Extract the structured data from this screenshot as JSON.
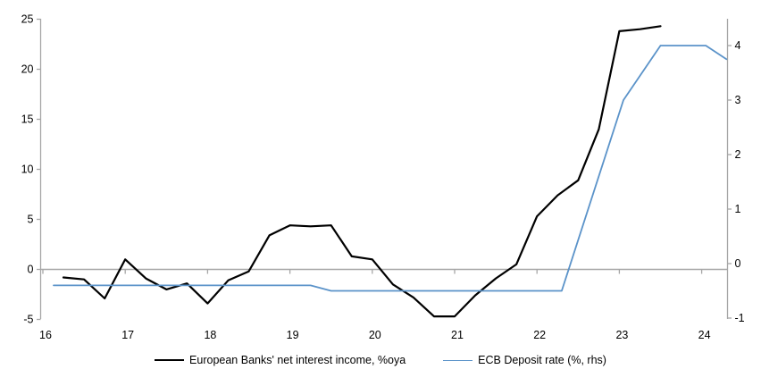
{
  "chart_data": {
    "type": "line",
    "title": "",
    "grid": false,
    "zero_line": true,
    "legend_position": "bottom",
    "x_axis": {
      "tick_labels": [
        "16",
        "17",
        "18",
        "19",
        "20",
        "21",
        "22",
        "23",
        "24"
      ],
      "tick_values": [
        16,
        17,
        18,
        19,
        20,
        21,
        22,
        23,
        24
      ],
      "range": [
        15.97,
        24.35
      ]
    },
    "left_axis": {
      "tick_labels": [
        "-5",
        "0",
        "5",
        "10",
        "15",
        "20",
        "25"
      ],
      "tick_values": [
        -5,
        0,
        5,
        10,
        15,
        20,
        25
      ],
      "range": [
        -5,
        25
      ]
    },
    "right_axis": {
      "tick_labels": [
        "-1",
        "0",
        "1",
        "2",
        "3",
        "4"
      ],
      "tick_values": [
        -1,
        0,
        1,
        2,
        3,
        4
      ],
      "range": [
        -1,
        4.5
      ]
    },
    "series": [
      {
        "name": "European Banks' net interest income, %oya",
        "axis": "left",
        "color": "#000000",
        "stroke_width": 2.2,
        "x": [
          16.25,
          16.5,
          16.75,
          17.0,
          17.25,
          17.5,
          17.75,
          18.0,
          18.25,
          18.5,
          18.75,
          19.0,
          19.25,
          19.5,
          19.75,
          20.0,
          20.25,
          20.5,
          20.75,
          21.0,
          21.25,
          21.5,
          21.75,
          22.0,
          22.25,
          22.5,
          22.75,
          23.0,
          23.25,
          23.5
        ],
        "y": [
          -0.8,
          -1.0,
          -2.9,
          1.0,
          -0.9,
          -2.0,
          -1.4,
          -3.4,
          -1.1,
          -0.2,
          3.4,
          4.4,
          4.3,
          4.4,
          1.3,
          1.0,
          -1.5,
          -2.8,
          -4.7,
          -4.7,
          -2.6,
          -0.9,
          0.5,
          5.3,
          7.4,
          8.9,
          14.0,
          23.8,
          24.0,
          24.3
        ]
      },
      {
        "name": "ECB Deposit rate (%, rhs)",
        "axis": "right",
        "color": "#5B93C9",
        "stroke_width": 1.8,
        "x": [
          16.13,
          19.25,
          19.5,
          22.3,
          23.05,
          23.5,
          24.05,
          24.3
        ],
        "y": [
          -0.4,
          -0.4,
          -0.5,
          -0.5,
          3.0,
          4.0,
          4.0,
          3.75
        ]
      }
    ]
  },
  "colors": {
    "axis": "#A6A6A6",
    "background": "#FFFFFF",
    "text": "#000000"
  }
}
